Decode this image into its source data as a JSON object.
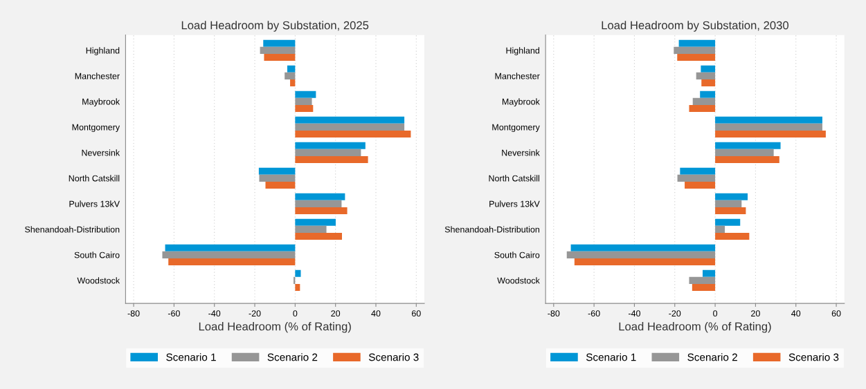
{
  "chart_data": [
    {
      "type": "bar",
      "orientation": "horizontal",
      "title": "Load Headroom by Substation, 2025",
      "xlabel": "Load Headroom (% of Rating)",
      "categories": [
        "Highland",
        "Manchester",
        "Maybrook",
        "Montgomery",
        "Neversink",
        "North Catskill",
        "Pulvers 13kV",
        "Shenandoah-Distribution",
        "South Cairo",
        "Woodstock"
      ],
      "series": [
        {
          "name": "Scenario 1",
          "color": "#0096d6",
          "values": [
            -15.8,
            -3.9,
            10.3,
            54.1,
            34.8,
            -18.0,
            24.7,
            20.1,
            -64.4,
            2.8
          ]
        },
        {
          "name": "Scenario 2",
          "color": "#969696",
          "values": [
            -17.4,
            -5.2,
            8.3,
            54.1,
            32.6,
            -17.8,
            23.0,
            15.5,
            -65.8,
            -0.8
          ]
        },
        {
          "name": "Scenario 3",
          "color": "#e8692a",
          "values": [
            -15.4,
            -2.5,
            8.9,
            57.3,
            36.1,
            -14.7,
            25.8,
            23.2,
            -62.8,
            2.4
          ]
        }
      ],
      "xlim": [
        -84,
        64
      ],
      "xticks": [
        -80,
        -60,
        -40,
        -20,
        0,
        20,
        40,
        60
      ],
      "grid": "x",
      "legend": "bottom"
    },
    {
      "type": "bar",
      "orientation": "horizontal",
      "title": "Load Headroom by Substation, 2030",
      "xlabel": "Load Headroom (% of Rating)",
      "categories": [
        "Highland",
        "Manchester",
        "Maybrook",
        "Montgomery",
        "Neversink",
        "North Catskill",
        "Pulvers 13kV",
        "Shenandoah-Distribution",
        "South Cairo",
        "Woodstock"
      ],
      "series": [
        {
          "name": "Scenario 1",
          "color": "#0096d6",
          "values": [
            -18.0,
            -7.1,
            -7.5,
            53.1,
            32.4,
            -17.4,
            16.1,
            12.4,
            -71.5,
            -6.2
          ]
        },
        {
          "name": "Scenario 2",
          "color": "#969696",
          "values": [
            -20.5,
            -9.4,
            -11.1,
            53.1,
            29.0,
            -18.7,
            13.1,
            4.8,
            -73.5,
            -12.9
          ]
        },
        {
          "name": "Scenario 3",
          "color": "#e8692a",
          "values": [
            -18.8,
            -6.8,
            -12.9,
            54.8,
            31.8,
            -15.1,
            15.2,
            16.9,
            -69.7,
            -11.4
          ]
        }
      ],
      "xlim": [
        -84,
        64
      ],
      "xticks": [
        -80,
        -60,
        -40,
        -20,
        0,
        20,
        40,
        60
      ],
      "grid": "x",
      "legend": "bottom"
    }
  ]
}
